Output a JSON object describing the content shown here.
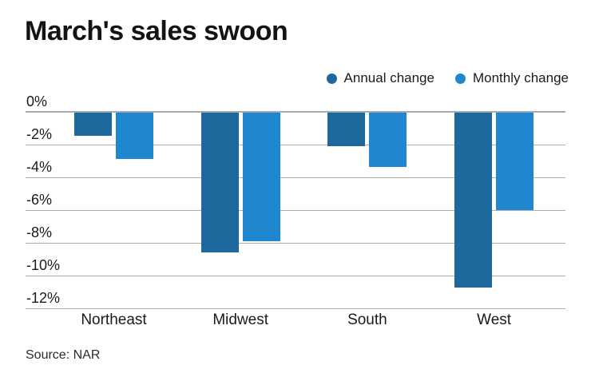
{
  "chart_data": {
    "type": "bar",
    "title": "March's sales swoon",
    "categories": [
      "Northeast",
      "Midwest",
      "South",
      "West"
    ],
    "series": [
      {
        "name": "Annual change",
        "color": "#1d699e",
        "values": [
          -1.5,
          -8.6,
          -2.1,
          -10.7
        ]
      },
      {
        "name": "Monthly change",
        "color": "#1f87cf",
        "values": [
          -2.9,
          -7.9,
          -3.4,
          -6.0
        ]
      }
    ],
    "ylabel": "",
    "xlabel": "",
    "ylim": [
      -12,
      0
    ],
    "tick_values": [
      0,
      -2,
      -4,
      -6,
      -8,
      -10,
      -12
    ],
    "ytick_labels": [
      "0%",
      "-2%",
      "-4%",
      "-6%",
      "-8%",
      "-10%",
      "-12%"
    ],
    "grid": true,
    "legend_position": "top-right",
    "source": "Source: NAR",
    "colors": {
      "gridline": "#adadad",
      "zero_line": "#a8abad",
      "text": "#1a1a1a"
    }
  }
}
